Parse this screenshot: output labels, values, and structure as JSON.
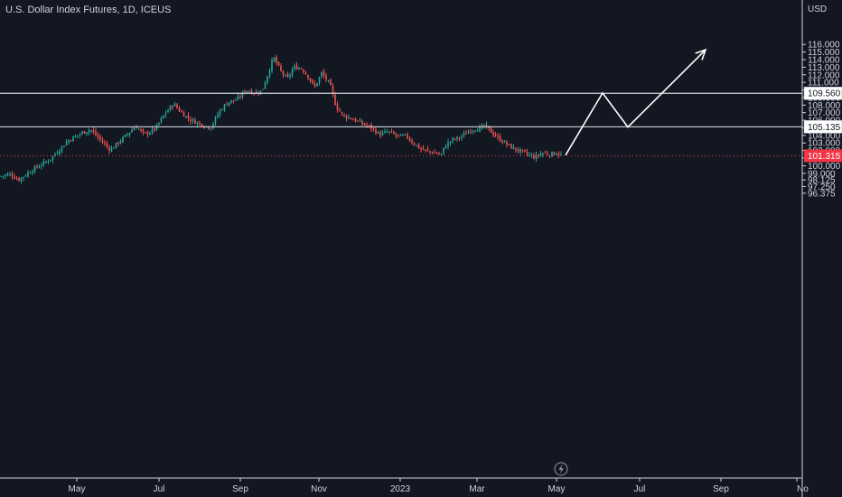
{
  "chart_data": {
    "type": "candlestick",
    "title": "U.S. Dollar Index Futures, 1D, ICEUS",
    "currency": "USD",
    "ylim": [
      96.0,
      116.5
    ],
    "y_ticks": [
      "116.000",
      "115.000",
      "114.000",
      "113.000",
      "112.000",
      "111.000",
      "110.000",
      "109.000",
      "108.000",
      "107.000",
      "106.000",
      "105.000",
      "104.000",
      "103.000",
      "102.000",
      "101.000",
      "100.000",
      "99.000",
      "98.125",
      "97.250",
      "96.375"
    ],
    "x_ticks": [
      "May",
      "Jul",
      "Sep",
      "Nov",
      "2023",
      "Mar",
      "May",
      "Jul",
      "Sep",
      "No"
    ],
    "price_path": [
      {
        "t": 0,
        "p": 98.6
      },
      {
        "t": 12,
        "p": 98.9
      },
      {
        "t": 20,
        "p": 98.1
      },
      {
        "t": 35,
        "p": 99.4
      },
      {
        "t": 55,
        "p": 100.8
      },
      {
        "t": 75,
        "p": 103.3
      },
      {
        "t": 90,
        "p": 104.3
      },
      {
        "t": 100,
        "p": 104.8
      },
      {
        "t": 112,
        "p": 103.3
      },
      {
        "t": 122,
        "p": 102.1
      },
      {
        "t": 135,
        "p": 103.5
      },
      {
        "t": 150,
        "p": 105.2
      },
      {
        "t": 160,
        "p": 104.1
      },
      {
        "t": 172,
        "p": 104.9
      },
      {
        "t": 182,
        "p": 106.8
      },
      {
        "t": 192,
        "p": 108.2
      },
      {
        "t": 200,
        "p": 107.1
      },
      {
        "t": 210,
        "p": 106.1
      },
      {
        "t": 222,
        "p": 105.5
      },
      {
        "t": 233,
        "p": 105.0
      },
      {
        "t": 243,
        "p": 107.2
      },
      {
        "t": 252,
        "p": 108.4
      },
      {
        "t": 262,
        "p": 108.7
      },
      {
        "t": 272,
        "p": 110.0
      },
      {
        "t": 282,
        "p": 109.6
      },
      {
        "t": 290,
        "p": 109.9
      },
      {
        "t": 297,
        "p": 112.3
      },
      {
        "t": 303,
        "p": 114.3
      },
      {
        "t": 310,
        "p": 112.6
      },
      {
        "t": 318,
        "p": 111.4
      },
      {
        "t": 325,
        "p": 113.0
      },
      {
        "t": 333,
        "p": 112.9
      },
      {
        "t": 341,
        "p": 111.8
      },
      {
        "t": 348,
        "p": 110.3
      },
      {
        "t": 356,
        "p": 112.2
      },
      {
        "t": 365,
        "p": 110.8
      },
      {
        "t": 372,
        "p": 107.8
      },
      {
        "t": 380,
        "p": 106.6
      },
      {
        "t": 390,
        "p": 106.2
      },
      {
        "t": 400,
        "p": 105.6
      },
      {
        "t": 410,
        "p": 105.1
      },
      {
        "t": 420,
        "p": 104.1
      },
      {
        "t": 430,
        "p": 104.5
      },
      {
        "t": 440,
        "p": 103.9
      },
      {
        "t": 450,
        "p": 103.9
      },
      {
        "t": 458,
        "p": 102.9
      },
      {
        "t": 466,
        "p": 102.2
      },
      {
        "t": 474,
        "p": 101.9
      },
      {
        "t": 482,
        "p": 101.7
      },
      {
        "t": 488,
        "p": 101.4
      },
      {
        "t": 493,
        "p": 102.7
      },
      {
        "t": 500,
        "p": 103.4
      },
      {
        "t": 508,
        "p": 103.7
      },
      {
        "t": 515,
        "p": 104.2
      },
      {
        "t": 522,
        "p": 104.8
      },
      {
        "t": 530,
        "p": 104.9
      },
      {
        "t": 538,
        "p": 105.2
      },
      {
        "t": 545,
        "p": 104.3
      },
      {
        "t": 552,
        "p": 103.6
      },
      {
        "t": 560,
        "p": 102.9
      },
      {
        "t": 568,
        "p": 102.3
      },
      {
        "t": 576,
        "p": 101.9
      },
      {
        "t": 584,
        "p": 101.5
      },
      {
        "t": 592,
        "p": 101.1
      },
      {
        "t": 600,
        "p": 101.7
      },
      {
        "t": 608,
        "p": 101.5
      },
      {
        "t": 616,
        "p": 101.7
      },
      {
        "t": 622,
        "p": 101.3
      }
    ],
    "levels": [
      {
        "value": 109.56,
        "label": "109.560"
      },
      {
        "value": 105.135,
        "label": "105.135"
      }
    ],
    "last_price": {
      "value": 101.315,
      "label": "101.315"
    },
    "projection": [
      {
        "t": 626,
        "p": 101.4
      },
      {
        "t": 667,
        "p": 109.6
      },
      {
        "t": 695,
        "p": 105.1
      },
      {
        "t": 781,
        "p": 115.3
      }
    ],
    "colors": {
      "background": "#131722",
      "up": "#26a69a",
      "down": "#ef5350",
      "grid_line": "#d1d4dc",
      "axis_line": "#cfd3dc",
      "text": "#d1d4dc",
      "last_price": "#f23645",
      "projection": "#ffffff"
    }
  },
  "widgets": {
    "flash_icon": "lightning-icon"
  }
}
